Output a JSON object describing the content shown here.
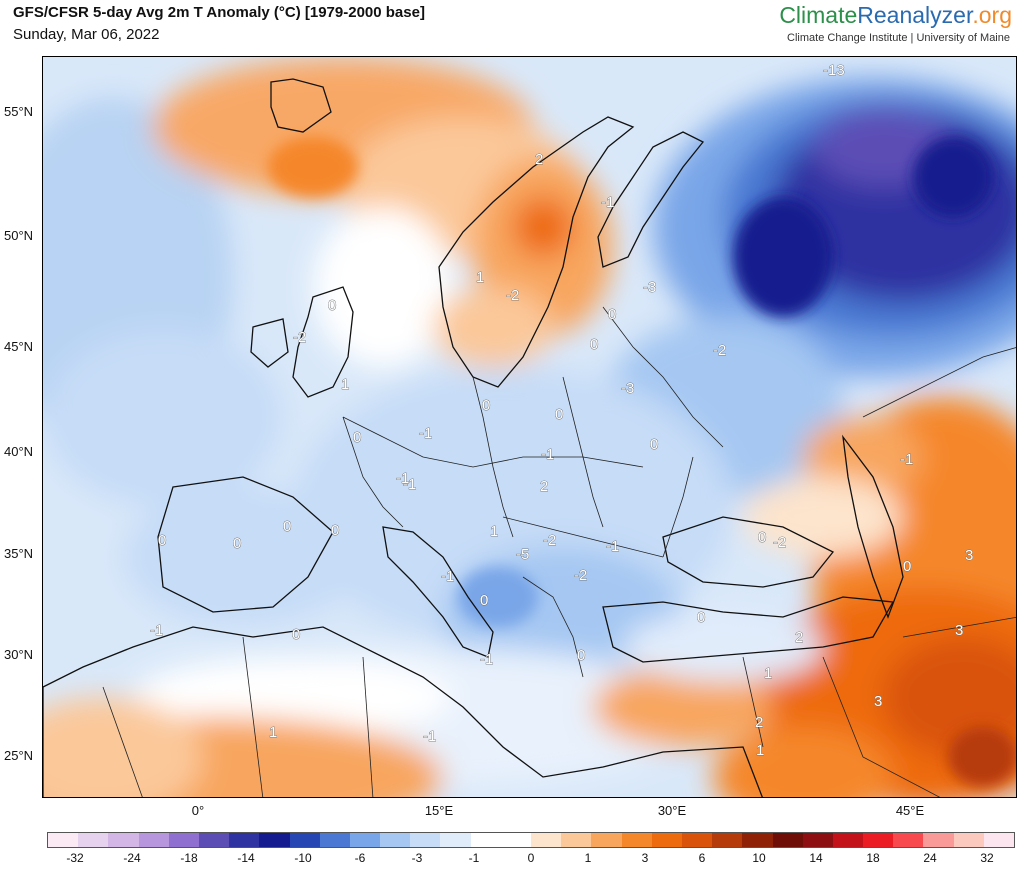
{
  "header": {
    "title": "GFS/CFSR 5-day Avg 2m T Anomaly (°C) [1979-2000 base]",
    "date": "Sunday, Mar 06, 2022"
  },
  "brand": {
    "part1": "Climate",
    "part2": "Reanalyzer",
    "part3": ".org",
    "subtitle": "Climate Change Institute | University of Maine"
  },
  "map": {
    "lat_labels": [
      "55°N",
      "50°N",
      "45°N",
      "40°N",
      "35°N",
      "30°N",
      "25°N"
    ],
    "lon_labels": [
      "0°",
      "15°E",
      "30°E",
      "45°E"
    ],
    "contour_labels": [
      "-13",
      "-2",
      "1",
      "2",
      "-1",
      "-3",
      "0",
      "-2",
      "0",
      "0",
      "-3",
      "-2",
      "1",
      "0",
      "0",
      "-1",
      "0",
      "0",
      "-1",
      "-1",
      "0",
      "0",
      "-1",
      "0",
      "0",
      "-5",
      "-2",
      "-1",
      "-2",
      "-2",
      "0",
      "0",
      "3",
      "-1",
      "0",
      "-1",
      "0",
      "0",
      "2",
      "3",
      "1",
      "3",
      "1",
      "2",
      "1",
      "-1",
      "2",
      "1",
      "0",
      "-1",
      "-1"
    ]
  },
  "colorbar": {
    "labels": [
      "-32",
      "-24",
      "-18",
      "-14",
      "-10",
      "-6",
      "-3",
      "-1",
      "0",
      "1",
      "3",
      "6",
      "10",
      "14",
      "18",
      "24",
      "32"
    ],
    "colors": [
      "#fbe9f4",
      "#e6d2ee",
      "#d3b5e6",
      "#b896dd",
      "#8f6fcf",
      "#5c4db5",
      "#2e33a1",
      "#141b8e",
      "#2546b3",
      "#4a78d2",
      "#79a6e8",
      "#a5c7f2",
      "#c6dcf7",
      "#e1ecfb",
      "#ffffff",
      "#ffffff",
      "#fde4cc",
      "#fbc89a",
      "#f8a65e",
      "#f5872b",
      "#ee6b0d",
      "#d9530a",
      "#b63b0a",
      "#8e2106",
      "#6e0e06",
      "#8d0f12",
      "#c4121b",
      "#ec1c24",
      "#f7494e",
      "#fa9a98",
      "#fcc9bf",
      "#fde5ef"
    ]
  }
}
